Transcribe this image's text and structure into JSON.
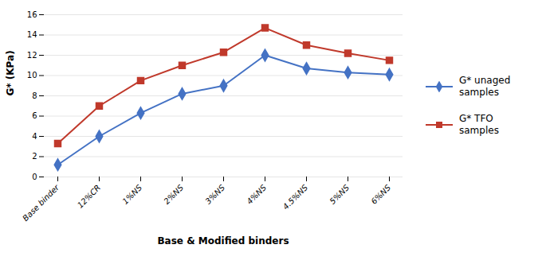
{
  "chart_data": {
    "type": "line",
    "categories": [
      "Base binder",
      "12%CR",
      "1%NS",
      "2%NS",
      "3%NS",
      "4%NS",
      "4.5%NS",
      "5%NS",
      "6%NS"
    ],
    "series": [
      {
        "name": "G* unaged\nsamples",
        "color": "#4472C4",
        "marker": "diamond",
        "values": [
          1.2,
          4.0,
          6.3,
          8.2,
          9.0,
          12.0,
          10.7,
          10.3,
          10.1
        ]
      },
      {
        "name": "G* TFO\nsamples",
        "color": "#C0392B",
        "marker": "square",
        "values": [
          3.3,
          7.0,
          9.5,
          11.0,
          12.3,
          14.7,
          13.0,
          12.2,
          11.5
        ]
      }
    ],
    "xlabel": "Base & Modified binders",
    "ylabel": "G* (KPa)",
    "ylim": [
      0,
      16
    ],
    "yticks": [
      0,
      2,
      4,
      6,
      8,
      10,
      12,
      14,
      16
    ],
    "grid": true,
    "legend": "right"
  }
}
